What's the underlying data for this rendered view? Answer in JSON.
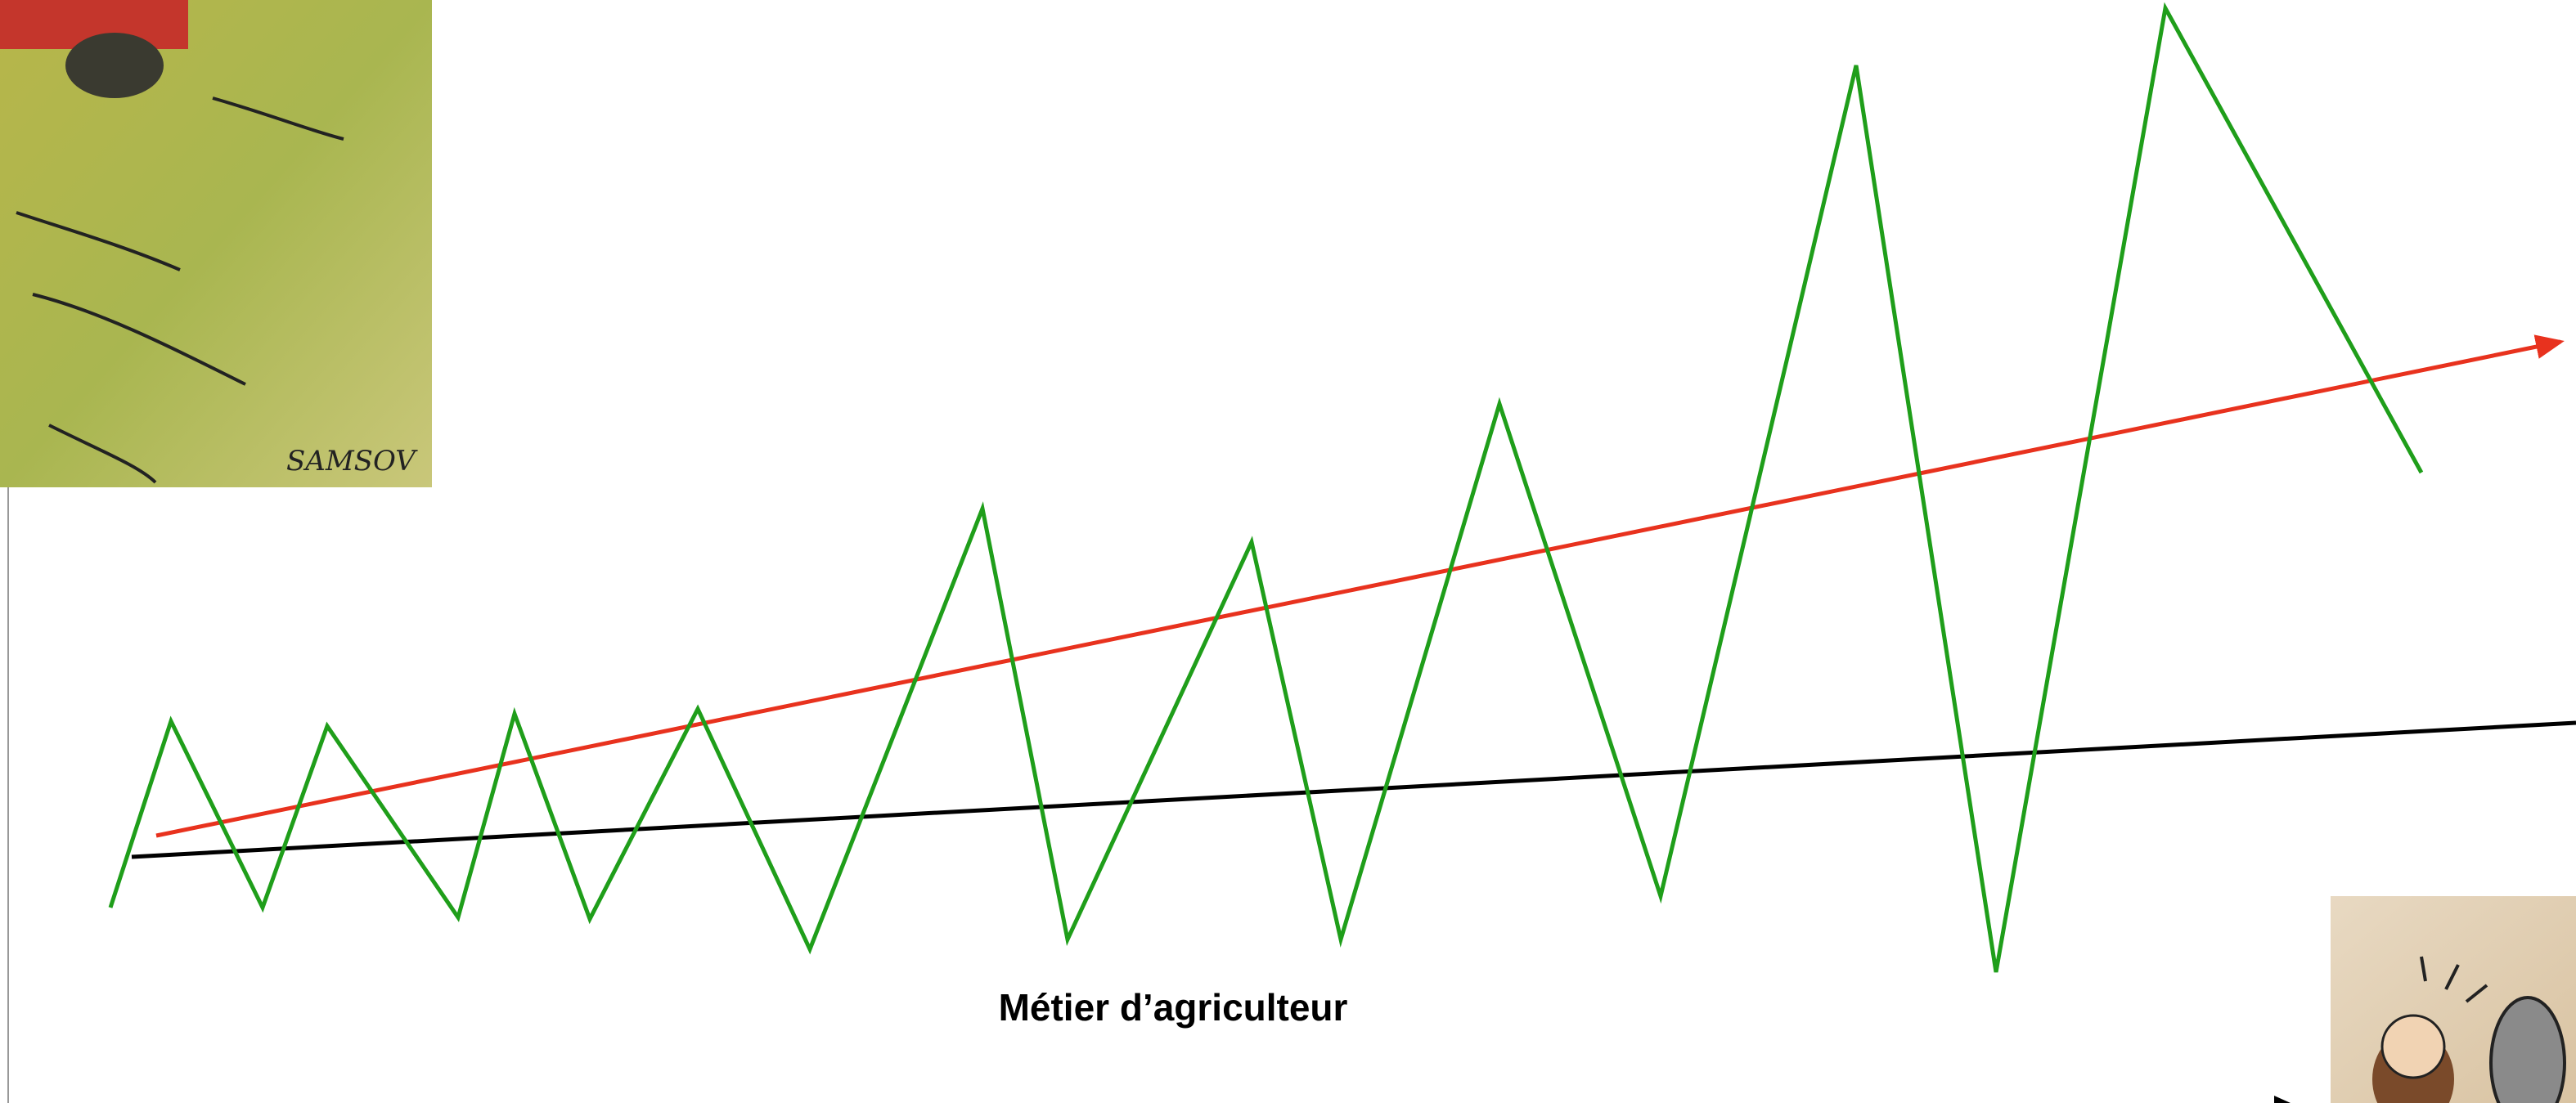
{
  "caption": "Métier d’agriculteur",
  "illustration": {
    "signature": "SAMSOV"
  }
}
